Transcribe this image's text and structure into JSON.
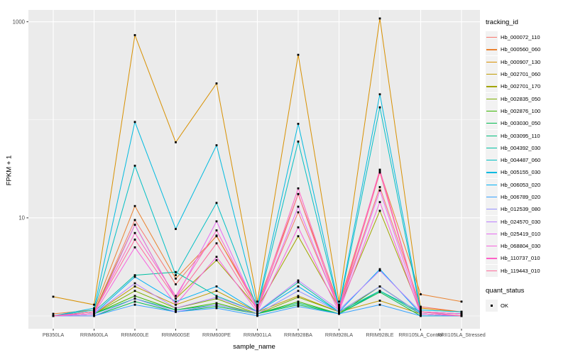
{
  "chart_data": {
    "type": "line",
    "title": "",
    "xlabel": "sample_name",
    "ylabel": "FPKM + 1",
    "y_scale": "log10",
    "ylim": [
      0.74,
      1320
    ],
    "y_ticks": [
      {
        "value": 10,
        "label": "10"
      },
      {
        "value": 1000,
        "label": "1000"
      }
    ],
    "y_minor": [
      1,
      100
    ],
    "grid": true,
    "panel_bg": "#EBEBEB",
    "grid_color": "#FFFFFF",
    "tick_label_color": "#4D4D4D",
    "point_color": "#000000",
    "legend_title": "tracking_id",
    "legend_position": "right",
    "second_legend": {
      "title": "quant_status",
      "items": [
        "OK"
      ]
    },
    "x_categories": [
      "PB350LA",
      "RRIM600LA",
      "RRIM600LE",
      "RRIM600SE",
      "RRIM600PE",
      "RRIM901LA",
      "RRIM928BA",
      "RRIM928LA",
      "RRIM928LE",
      "RRII105LA_Control",
      "RRII105LA_Stressed"
    ],
    "series": [
      {
        "name": "Hb_000072_110",
        "color": "#F8766D",
        "values": [
          1.0,
          1.1,
          9.5,
          2.1,
          6.6,
          1.2,
          11.4,
          1.2,
          20.6,
          1.24,
          1.1
        ]
      },
      {
        "name": "Hb_000560_060",
        "color": "#EA8331",
        "values": [
          1.05,
          1.15,
          13.2,
          2.4,
          6.5,
          1.3,
          17.5,
          1.3,
          30,
          1.66,
          1.4
        ]
      },
      {
        "name": "Hb_000907_130",
        "color": "#D89000",
        "values": [
          1.57,
          1.3,
          730,
          59,
          235,
          1.4,
          460,
          1.4,
          1080,
          1.2,
          1.1
        ]
      },
      {
        "name": "Hb_002701_060",
        "color": "#C09B00",
        "values": [
          1.0,
          1.05,
          2.0,
          1.3,
          1.8,
          1.1,
          1.6,
          1.1,
          1.43,
          1.05,
          1.0
        ]
      },
      {
        "name": "Hb_002701_170",
        "color": "#A3A500",
        "values": [
          1.0,
          1.1,
          8.5,
          1.5,
          3.7,
          1.2,
          6.5,
          1.2,
          11.8,
          1.1,
          1.05
        ]
      },
      {
        "name": "Hb_002835_050",
        "color": "#7CAE00",
        "values": [
          1.0,
          1.05,
          1.8,
          1.2,
          1.5,
          1.05,
          1.55,
          1.1,
          2.0,
          1.05,
          1.0
        ]
      },
      {
        "name": "Hb_002876_100",
        "color": "#39B600",
        "values": [
          1.0,
          1.05,
          1.6,
          1.15,
          1.35,
          1.05,
          1.4,
          1.05,
          2.0,
          1.05,
          1.0
        ]
      },
      {
        "name": "Hb_003030_050",
        "color": "#00BB4E",
        "values": [
          1.0,
          1.0,
          1.4,
          1.1,
          1.25,
          1.05,
          1.3,
          1.05,
          1.75,
          1.0,
          1.0
        ]
      },
      {
        "name": "Hb_003095_110",
        "color": "#00BF7D",
        "values": [
          1.0,
          1.05,
          1.5,
          1.15,
          1.3,
          1.05,
          1.35,
          1.05,
          1.8,
          1.05,
          1.0
        ]
      },
      {
        "name": "Hb_004392_030",
        "color": "#00C1A3",
        "values": [
          1.0,
          1.1,
          2.6,
          2.8,
          1.6,
          1.1,
          2.2,
          1.1,
          1.8,
          1.1,
          1.05
        ]
      },
      {
        "name": "Hb_004487_060",
        "color": "#00BFC4",
        "values": [
          1.0,
          1.15,
          34,
          2.6,
          14.2,
          1.2,
          60,
          1.2,
          134,
          1.1,
          1.05
        ]
      },
      {
        "name": "Hb_005155_030",
        "color": "#00BAE0",
        "values": [
          1.0,
          1.2,
          95,
          7.7,
          55,
          1.25,
          91,
          1.25,
          182,
          1.15,
          1.1
        ]
      },
      {
        "name": "Hb_006053_020",
        "color": "#00B0F6",
        "values": [
          1.0,
          1.05,
          2.5,
          1.4,
          2.0,
          1.1,
          2.0,
          1.1,
          3.0,
          1.05,
          1.0
        ]
      },
      {
        "name": "Hb_006789_020",
        "color": "#35A2FF",
        "values": [
          1.0,
          1.0,
          1.3,
          1.1,
          1.2,
          1.0,
          1.25,
          1.05,
          1.3,
          1.0,
          1.0
        ]
      },
      {
        "name": "Hb_012539_080",
        "color": "#9590FF",
        "values": [
          1.0,
          1.0,
          1.5,
          1.1,
          1.3,
          1.05,
          1.8,
          1.1,
          2.0,
          1.05,
          1.0
        ]
      },
      {
        "name": "Hb_024570_030",
        "color": "#BC80FF",
        "values": [
          1.0,
          1.05,
          2.15,
          1.2,
          1.55,
          1.1,
          2.3,
          1.15,
          2.9,
          1.1,
          1.05
        ]
      },
      {
        "name": "Hb_025419_010",
        "color": "#E76BF3",
        "values": [
          1.0,
          1.05,
          8.5,
          1.5,
          9.2,
          1.15,
          13,
          1.15,
          19,
          1.1,
          1.0
        ]
      },
      {
        "name": "Hb_068804_030",
        "color": "#F862DD",
        "values": [
          1.0,
          1.05,
          5.0,
          1.3,
          4.0,
          1.1,
          8.0,
          1.1,
          14.5,
          1.05,
          1.0
        ]
      },
      {
        "name": "Hb_110737_010",
        "color": "#FF61C7",
        "values": [
          1.0,
          1.1,
          7.0,
          1.6,
          7.45,
          1.2,
          20,
          1.2,
          31,
          1.1,
          1.05
        ]
      },
      {
        "name": "Hb_119443_010",
        "color": "#FF6A9A",
        "values": [
          1.0,
          1.1,
          6.0,
          1.5,
          5.5,
          1.15,
          17.5,
          1.15,
          29,
          1.1,
          1.0
        ]
      }
    ]
  }
}
